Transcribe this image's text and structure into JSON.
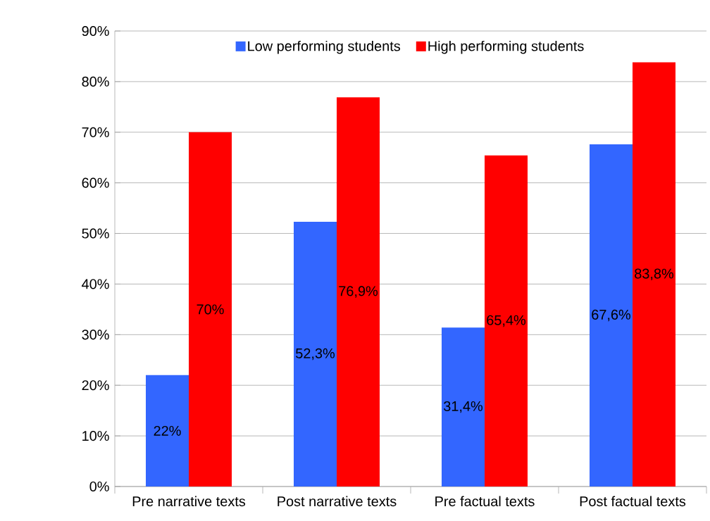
{
  "chart_data": {
    "type": "bar",
    "categories": [
      "Pre narrative texts",
      "Post narrative texts",
      "Pre factual texts",
      "Post factual texts"
    ],
    "series": [
      {
        "name": "Low performing students",
        "color": "#3366ff",
        "values": [
          22,
          52.3,
          31.4,
          67.6
        ],
        "value_labels": [
          "22%",
          "52,3%",
          "31,4%",
          "67,6%"
        ]
      },
      {
        "name": "High performing students",
        "color": "#ff0000",
        "values": [
          70,
          76.9,
          65.4,
          83.8
        ],
        "value_labels": [
          "70%",
          "76,9%",
          "65,4%",
          "83,8%"
        ]
      }
    ],
    "ylim": [
      0,
      90
    ],
    "yticks": [
      {
        "value": 0,
        "label": "0%"
      },
      {
        "value": 10,
        "label": "10%"
      },
      {
        "value": 20,
        "label": "20%"
      },
      {
        "value": 30,
        "label": "30%"
      },
      {
        "value": 40,
        "label": "40%"
      },
      {
        "value": 50,
        "label": "50%"
      },
      {
        "value": 60,
        "label": "60%"
      },
      {
        "value": 70,
        "label": "70%"
      },
      {
        "value": 80,
        "label": "80%"
      },
      {
        "value": 90,
        "label": "90%"
      }
    ],
    "grid": "y",
    "legend": "top"
  }
}
